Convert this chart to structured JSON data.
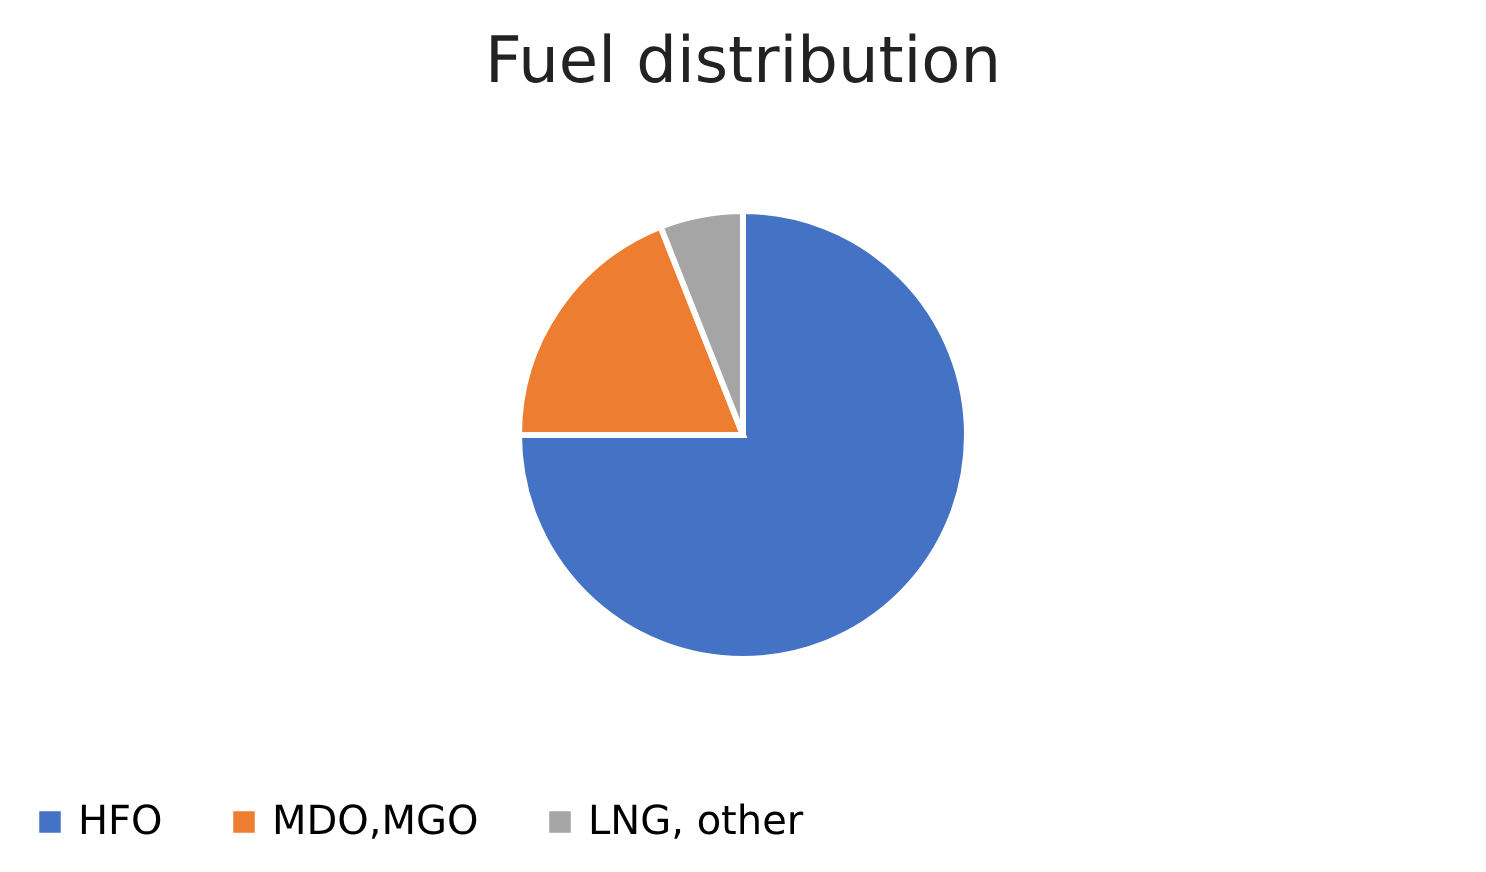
{
  "chart_data": {
    "type": "pie",
    "title": "Fuel distribution",
    "categories": [
      "HFO",
      "MDO,MGO",
      "LNG, other"
    ],
    "values": [
      75,
      19,
      6
    ],
    "colors": [
      "#4472c4",
      "#ed7d31",
      "#a5a5a5"
    ],
    "legend": "bottom"
  }
}
